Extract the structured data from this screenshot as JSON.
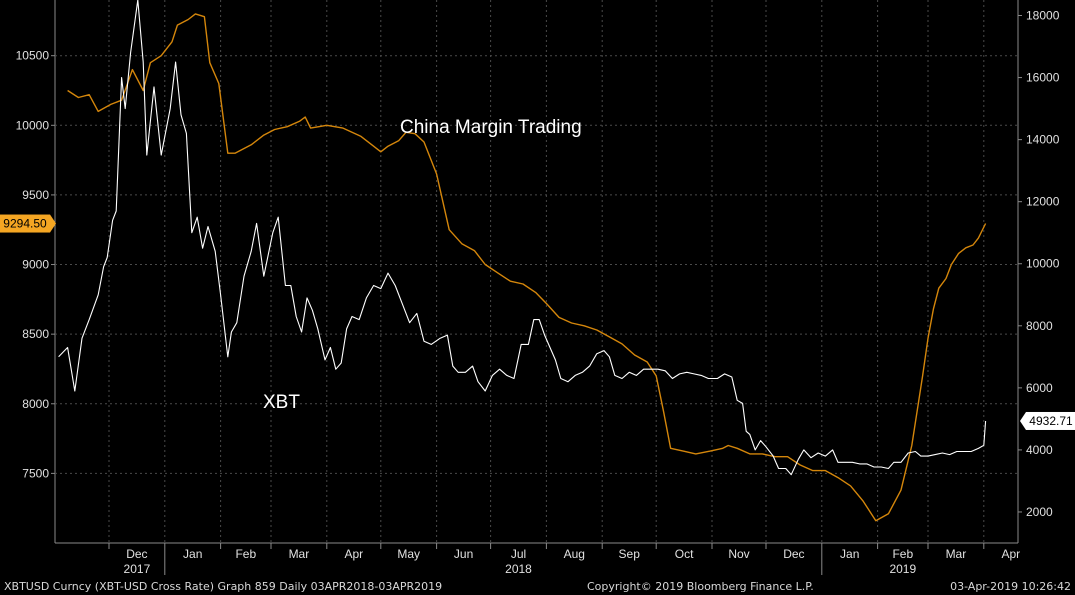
{
  "chart_data": {
    "type": "line",
    "title": "",
    "left_axis": {
      "ticks": [
        7500,
        8000,
        8500,
        9000,
        9500,
        10000,
        10500
      ],
      "range": [
        7000,
        10900
      ]
    },
    "right_axis": {
      "ticks": [
        2000,
        4000,
        6000,
        8000,
        10000,
        12000,
        14000,
        16000,
        18000
      ],
      "range": [
        1000,
        18500
      ]
    },
    "x_ticks": [
      {
        "label": "Dec",
        "year": "2017"
      },
      {
        "label": "Jan",
        "year": ""
      },
      {
        "label": "Feb",
        "year": ""
      },
      {
        "label": "Mar",
        "year": ""
      },
      {
        "label": "Apr",
        "year": ""
      },
      {
        "label": "May",
        "year": ""
      },
      {
        "label": "Jun",
        "year": ""
      },
      {
        "label": "Jul",
        "year": "2018"
      },
      {
        "label": "Aug",
        "year": ""
      },
      {
        "label": "Sep",
        "year": ""
      },
      {
        "label": "Oct",
        "year": ""
      },
      {
        "label": "Nov",
        "year": ""
      },
      {
        "label": "Dec",
        "year": ""
      },
      {
        "label": "Jan",
        "year": ""
      },
      {
        "label": "Feb",
        "year": "2019"
      },
      {
        "label": "Mar",
        "year": ""
      },
      {
        "label": "Apr",
        "year": ""
      }
    ],
    "annotations": [
      "China Margin Trading",
      "XBT"
    ],
    "last_value_tags": [
      {
        "value": "9294.50",
        "axis": "left",
        "color": "#f5a623"
      },
      {
        "value": "4932.71",
        "axis": "right",
        "color": "#ffffff"
      }
    ],
    "series": [
      {
        "name": "China Margin Trading",
        "axis": "left",
        "color": "#d4860b",
        "points": [
          [
            "2017-11-08",
            10250
          ],
          [
            "2017-11-14",
            10200
          ],
          [
            "2017-11-20",
            10220
          ],
          [
            "2017-11-25",
            10100
          ],
          [
            "2017-12-02",
            10150
          ],
          [
            "2017-12-08",
            10180
          ],
          [
            "2017-12-14",
            10400
          ],
          [
            "2017-12-20",
            10250
          ],
          [
            "2017-12-24",
            10450
          ],
          [
            "2017-12-30",
            10500
          ],
          [
            "2018-01-05",
            10600
          ],
          [
            "2018-01-08",
            10720
          ],
          [
            "2018-01-14",
            10760
          ],
          [
            "2018-01-18",
            10800
          ],
          [
            "2018-01-23",
            10780
          ],
          [
            "2018-01-26",
            10450
          ],
          [
            "2018-01-31",
            10300
          ],
          [
            "2018-02-05",
            9800
          ],
          [
            "2018-02-09",
            9800
          ],
          [
            "2018-02-18",
            9860
          ],
          [
            "2018-02-25",
            9930
          ],
          [
            "2018-03-03",
            9970
          ],
          [
            "2018-03-10",
            9990
          ],
          [
            "2018-03-17",
            10030
          ],
          [
            "2018-03-20",
            10060
          ],
          [
            "2018-03-23",
            9980
          ],
          [
            "2018-04-01",
            10000
          ],
          [
            "2018-04-10",
            9980
          ],
          [
            "2018-04-20",
            9920
          ],
          [
            "2018-04-27",
            9850
          ],
          [
            "2018-05-01",
            9810
          ],
          [
            "2018-05-05",
            9850
          ],
          [
            "2018-05-11",
            9890
          ],
          [
            "2018-05-15",
            9950
          ],
          [
            "2018-05-20",
            9940
          ],
          [
            "2018-05-25",
            9880
          ],
          [
            "2018-06-01",
            9650
          ],
          [
            "2018-06-08",
            9250
          ],
          [
            "2018-06-15",
            9150
          ],
          [
            "2018-06-22",
            9100
          ],
          [
            "2018-06-28",
            9000
          ],
          [
            "2018-07-05",
            8940
          ],
          [
            "2018-07-12",
            8880
          ],
          [
            "2018-07-19",
            8860
          ],
          [
            "2018-07-26",
            8800
          ],
          [
            "2018-08-01",
            8720
          ],
          [
            "2018-08-08",
            8620
          ],
          [
            "2018-08-15",
            8580
          ],
          [
            "2018-08-22",
            8560
          ],
          [
            "2018-08-29",
            8530
          ],
          [
            "2018-09-05",
            8480
          ],
          [
            "2018-09-12",
            8430
          ],
          [
            "2018-09-19",
            8350
          ],
          [
            "2018-09-26",
            8300
          ],
          [
            "2018-10-01",
            8200
          ],
          [
            "2018-10-05",
            7950
          ],
          [
            "2018-10-09",
            7680
          ],
          [
            "2018-10-16",
            7660
          ],
          [
            "2018-10-23",
            7640
          ],
          [
            "2018-10-31",
            7660
          ],
          [
            "2018-11-07",
            7680
          ],
          [
            "2018-11-10",
            7700
          ],
          [
            "2018-11-15",
            7680
          ],
          [
            "2018-11-22",
            7640
          ],
          [
            "2018-11-29",
            7640
          ],
          [
            "2018-12-06",
            7620
          ],
          [
            "2018-12-13",
            7620
          ],
          [
            "2018-12-20",
            7560
          ],
          [
            "2018-12-27",
            7520
          ],
          [
            "2019-01-03",
            7520
          ],
          [
            "2019-01-10",
            7470
          ],
          [
            "2019-01-17",
            7410
          ],
          [
            "2019-01-24",
            7300
          ],
          [
            "2019-01-31",
            7160
          ],
          [
            "2019-02-07",
            7210
          ],
          [
            "2019-02-14",
            7380
          ],
          [
            "2019-02-20",
            7700
          ],
          [
            "2019-02-23",
            7950
          ],
          [
            "2019-02-26",
            8200
          ],
          [
            "2019-03-01",
            8470
          ],
          [
            "2019-03-04",
            8680
          ],
          [
            "2019-03-07",
            8830
          ],
          [
            "2019-03-11",
            8900
          ],
          [
            "2019-03-14",
            9000
          ],
          [
            "2019-03-18",
            9080
          ],
          [
            "2019-03-22",
            9120
          ],
          [
            "2019-03-26",
            9140
          ],
          [
            "2019-03-29",
            9190
          ],
          [
            "2019-04-02",
            9294.5
          ]
        ]
      },
      {
        "name": "XBT",
        "axis": "right",
        "color": "#ffffff",
        "points": [
          [
            "2017-11-03",
            7000
          ],
          [
            "2017-11-08",
            7300
          ],
          [
            "2017-11-12",
            5900
          ],
          [
            "2017-11-16",
            7600
          ],
          [
            "2017-11-20",
            8200
          ],
          [
            "2017-11-25",
            9000
          ],
          [
            "2017-11-28",
            9900
          ],
          [
            "2017-11-30",
            10200
          ],
          [
            "2017-12-03",
            11400
          ],
          [
            "2017-12-05",
            11700
          ],
          [
            "2017-12-08",
            16000
          ],
          [
            "2017-12-10",
            15000
          ],
          [
            "2017-12-13",
            16800
          ],
          [
            "2017-12-17",
            18500
          ],
          [
            "2017-12-20",
            16500
          ],
          [
            "2017-12-22",
            13500
          ],
          [
            "2017-12-26",
            15700
          ],
          [
            "2017-12-30",
            13500
          ],
          [
            "2018-01-04",
            15000
          ],
          [
            "2018-01-07",
            16500
          ],
          [
            "2018-01-10",
            14800
          ],
          [
            "2018-01-13",
            14200
          ],
          [
            "2018-01-16",
            11000
          ],
          [
            "2018-01-19",
            11500
          ],
          [
            "2018-01-22",
            10500
          ],
          [
            "2018-01-25",
            11200
          ],
          [
            "2018-01-29",
            10400
          ],
          [
            "2018-02-01",
            9000
          ],
          [
            "2018-02-05",
            7000
          ],
          [
            "2018-02-07",
            7800
          ],
          [
            "2018-02-10",
            8100
          ],
          [
            "2018-02-14",
            9600
          ],
          [
            "2018-02-18",
            10400
          ],
          [
            "2018-02-21",
            11300
          ],
          [
            "2018-02-25",
            9600
          ],
          [
            "2018-03-02",
            11000
          ],
          [
            "2018-03-05",
            11500
          ],
          [
            "2018-03-09",
            9300
          ],
          [
            "2018-03-12",
            9300
          ],
          [
            "2018-03-15",
            8300
          ],
          [
            "2018-03-18",
            7800
          ],
          [
            "2018-03-21",
            8900
          ],
          [
            "2018-03-24",
            8500
          ],
          [
            "2018-03-27",
            7900
          ],
          [
            "2018-03-31",
            6900
          ],
          [
            "2018-04-03",
            7300
          ],
          [
            "2018-04-06",
            6600
          ],
          [
            "2018-04-09",
            6800
          ],
          [
            "2018-04-12",
            7900
          ],
          [
            "2018-04-15",
            8300
          ],
          [
            "2018-04-19",
            8200
          ],
          [
            "2018-04-23",
            8900
          ],
          [
            "2018-04-27",
            9300
          ],
          [
            "2018-05-01",
            9200
          ],
          [
            "2018-05-05",
            9700
          ],
          [
            "2018-05-09",
            9300
          ],
          [
            "2018-05-13",
            8700
          ],
          [
            "2018-05-17",
            8100
          ],
          [
            "2018-05-21",
            8400
          ],
          [
            "2018-05-25",
            7500
          ],
          [
            "2018-05-29",
            7400
          ],
          [
            "2018-06-03",
            7600
          ],
          [
            "2018-06-07",
            7700
          ],
          [
            "2018-06-10",
            6700
          ],
          [
            "2018-06-13",
            6500
          ],
          [
            "2018-06-17",
            6500
          ],
          [
            "2018-06-21",
            6700
          ],
          [
            "2018-06-24",
            6200
          ],
          [
            "2018-06-28",
            5900
          ],
          [
            "2018-07-02",
            6400
          ],
          [
            "2018-07-06",
            6600
          ],
          [
            "2018-07-10",
            6400
          ],
          [
            "2018-07-14",
            6300
          ],
          [
            "2018-07-18",
            7400
          ],
          [
            "2018-07-22",
            7400
          ],
          [
            "2018-07-25",
            8200
          ],
          [
            "2018-07-28",
            8200
          ],
          [
            "2018-07-31",
            7700
          ],
          [
            "2018-08-03",
            7300
          ],
          [
            "2018-08-06",
            6900
          ],
          [
            "2018-08-09",
            6300
          ],
          [
            "2018-08-13",
            6200
          ],
          [
            "2018-08-17",
            6400
          ],
          [
            "2018-08-21",
            6500
          ],
          [
            "2018-08-25",
            6700
          ],
          [
            "2018-08-29",
            7100
          ],
          [
            "2018-09-02",
            7200
          ],
          [
            "2018-09-05",
            7000
          ],
          [
            "2018-09-08",
            6400
          ],
          [
            "2018-09-12",
            6300
          ],
          [
            "2018-09-16",
            6500
          ],
          [
            "2018-09-20",
            6400
          ],
          [
            "2018-09-24",
            6600
          ],
          [
            "2018-09-28",
            6600
          ],
          [
            "2018-10-02",
            6600
          ],
          [
            "2018-10-06",
            6550
          ],
          [
            "2018-10-10",
            6300
          ],
          [
            "2018-10-14",
            6450
          ],
          [
            "2018-10-18",
            6500
          ],
          [
            "2018-10-22",
            6450
          ],
          [
            "2018-10-26",
            6400
          ],
          [
            "2018-10-30",
            6300
          ],
          [
            "2018-11-04",
            6300
          ],
          [
            "2018-11-08",
            6450
          ],
          [
            "2018-11-12",
            6350
          ],
          [
            "2018-11-15",
            5600
          ],
          [
            "2018-11-18",
            5500
          ],
          [
            "2018-11-20",
            4600
          ],
          [
            "2018-11-22",
            4500
          ],
          [
            "2018-11-25",
            4000
          ],
          [
            "2018-11-28",
            4300
          ],
          [
            "2018-12-01",
            4100
          ],
          [
            "2018-12-05",
            3800
          ],
          [
            "2018-12-08",
            3400
          ],
          [
            "2018-12-12",
            3400
          ],
          [
            "2018-12-15",
            3200
          ],
          [
            "2018-12-19",
            3700
          ],
          [
            "2018-12-22",
            4000
          ],
          [
            "2018-12-26",
            3750
          ],
          [
            "2018-12-30",
            3900
          ],
          [
            "2019-01-03",
            3800
          ],
          [
            "2019-01-07",
            4000
          ],
          [
            "2019-01-10",
            3600
          ],
          [
            "2019-01-14",
            3600
          ],
          [
            "2019-01-18",
            3600
          ],
          [
            "2019-01-22",
            3550
          ],
          [
            "2019-01-26",
            3550
          ],
          [
            "2019-01-30",
            3450
          ],
          [
            "2019-02-03",
            3450
          ],
          [
            "2019-02-07",
            3400
          ],
          [
            "2019-02-10",
            3600
          ],
          [
            "2019-02-14",
            3600
          ],
          [
            "2019-02-18",
            3900
          ],
          [
            "2019-02-22",
            3950
          ],
          [
            "2019-02-25",
            3800
          ],
          [
            "2019-03-01",
            3800
          ],
          [
            "2019-03-05",
            3850
          ],
          [
            "2019-03-09",
            3900
          ],
          [
            "2019-03-13",
            3850
          ],
          [
            "2019-03-17",
            3950
          ],
          [
            "2019-03-21",
            3950
          ],
          [
            "2019-03-25",
            3950
          ],
          [
            "2019-03-29",
            4050
          ],
          [
            "2019-04-01",
            4150
          ],
          [
            "2019-04-02",
            4932.71
          ]
        ]
      }
    ]
  },
  "footer": {
    "left": "XBTUSD Curncy (XBT-USD Cross Rate) Graph 859  Daily 03APR2018-03APR2019",
    "center": "Copyright© 2019 Bloomberg Finance L.P.",
    "right": "03-Apr-2019 10:26:42"
  }
}
